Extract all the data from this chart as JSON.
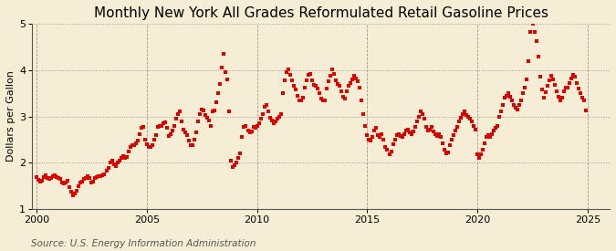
{
  "title": "Monthly New York All Grades Reformulated Retail Gasoline Prices",
  "ylabel": "Dollars per Gallon",
  "source": "Source: U.S. Energy Information Administration",
  "ylim": [
    1.0,
    5.0
  ],
  "xlim": [
    1999.8,
    2026.0
  ],
  "yticks": [
    1.0,
    2.0,
    3.0,
    4.0,
    5.0
  ],
  "xticks": [
    2000,
    2005,
    2010,
    2015,
    2020,
    2025
  ],
  "dot_color": "#dd0000",
  "background_color": "#f5eed5",
  "plot_bg_color": "#f5eed5",
  "title_fontsize": 11,
  "label_fontsize": 8,
  "tick_fontsize": 8,
  "source_fontsize": 7.5,
  "prices": [
    1.69,
    1.63,
    1.59,
    1.62,
    1.69,
    1.73,
    1.67,
    1.65,
    1.68,
    1.71,
    1.73,
    1.7,
    1.68,
    1.65,
    1.58,
    1.55,
    1.57,
    1.61,
    1.48,
    1.38,
    1.3,
    1.33,
    1.4,
    1.5,
    1.58,
    1.6,
    1.65,
    1.68,
    1.72,
    1.67,
    1.58,
    1.6,
    1.68,
    1.7,
    1.71,
    1.72,
    1.73,
    1.75,
    1.82,
    1.88,
    2.0,
    2.05,
    1.97,
    1.93,
    2.0,
    2.05,
    2.1,
    2.15,
    2.1,
    2.12,
    2.25,
    2.35,
    2.38,
    2.38,
    2.42,
    2.48,
    2.62,
    2.75,
    2.78,
    2.5,
    2.4,
    2.35,
    2.35,
    2.38,
    2.5,
    2.6,
    2.78,
    2.8,
    2.79,
    2.85,
    2.88,
    2.75,
    2.58,
    2.62,
    2.7,
    2.8,
    2.95,
    3.05,
    3.1,
    2.9,
    2.72,
    2.65,
    2.6,
    2.48,
    2.38,
    2.38,
    2.5,
    2.65,
    2.9,
    3.05,
    3.15,
    3.12,
    3.02,
    2.98,
    2.92,
    2.8,
    3.1,
    3.12,
    3.3,
    3.5,
    3.7,
    4.05,
    4.35,
    3.95,
    3.8,
    3.1,
    2.05,
    1.9,
    1.95,
    2.0,
    2.1,
    2.2,
    2.55,
    2.78,
    2.8,
    2.7,
    2.65,
    2.68,
    2.78,
    2.75,
    2.8,
    2.85,
    2.95,
    3.05,
    3.2,
    3.25,
    3.1,
    2.98,
    2.92,
    2.85,
    2.9,
    2.95,
    3.0,
    3.05,
    3.5,
    3.78,
    3.95,
    4.02,
    3.9,
    3.78,
    3.65,
    3.58,
    3.45,
    3.35,
    3.35,
    3.4,
    3.62,
    3.78,
    3.9,
    3.92,
    3.78,
    3.68,
    3.65,
    3.6,
    3.5,
    3.38,
    3.35,
    3.35,
    3.6,
    3.75,
    3.88,
    4.02,
    3.92,
    3.78,
    3.7,
    3.65,
    3.55,
    3.42,
    3.38,
    3.55,
    3.65,
    3.72,
    3.8,
    3.88,
    3.82,
    3.75,
    3.62,
    3.35,
    3.05,
    2.8,
    2.6,
    2.5,
    2.48,
    2.55,
    2.7,
    2.75,
    2.6,
    2.55,
    2.62,
    2.5,
    2.35,
    2.28,
    2.18,
    2.25,
    2.4,
    2.5,
    2.6,
    2.62,
    2.58,
    2.55,
    2.62,
    2.7,
    2.72,
    2.65,
    2.62,
    2.68,
    2.78,
    2.9,
    3.0,
    3.1,
    3.05,
    2.95,
    2.78,
    2.7,
    2.72,
    2.78,
    2.68,
    2.62,
    2.58,
    2.62,
    2.55,
    2.42,
    2.28,
    2.2,
    2.22,
    2.38,
    2.5,
    2.6,
    2.7,
    2.78,
    2.9,
    2.98,
    3.05,
    3.1,
    3.02,
    3.0,
    2.95,
    2.9,
    2.8,
    2.72,
    2.18,
    2.1,
    2.18,
    2.28,
    2.42,
    2.55,
    2.6,
    2.55,
    2.62,
    2.7,
    2.75,
    2.8,
    3.0,
    3.1,
    3.25,
    3.4,
    3.45,
    3.5,
    3.42,
    3.35,
    3.25,
    3.18,
    3.15,
    3.25,
    3.35,
    3.5,
    3.62,
    3.8,
    4.2,
    4.82,
    5.0,
    4.82,
    4.62,
    4.28,
    3.85,
    3.58,
    3.4,
    3.52,
    3.65,
    3.78,
    3.88,
    3.8,
    3.68,
    3.55,
    3.42,
    3.35,
    3.4,
    3.55,
    3.62,
    3.62,
    3.72,
    3.82,
    3.9,
    3.85,
    3.72,
    3.6,
    3.5,
    3.4,
    3.35,
    3.12
  ]
}
